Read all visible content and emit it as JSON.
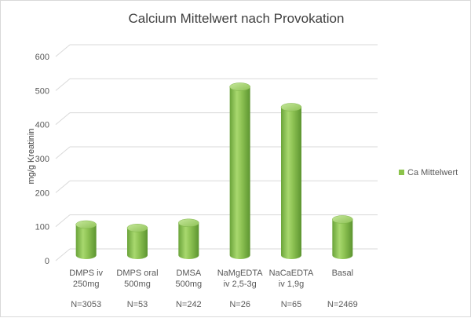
{
  "chart_data": {
    "type": "bar",
    "title": "Calcium Mittelwert nach Provokation",
    "ylabel": "mg/g Kreatinin",
    "xlabel": "",
    "ylim": [
      0,
      600
    ],
    "yticks": [
      0,
      100,
      200,
      300,
      400,
      500,
      600
    ],
    "grid": true,
    "legend_position": "right",
    "series": [
      {
        "name": "Ca Mittelwert",
        "color": "#8BC34A",
        "values": [
          90,
          80,
          95,
          495,
          435,
          105
        ]
      }
    ],
    "categories": [
      {
        "lines": [
          "DMPS iv",
          "250mg"
        ],
        "n": "N=3053"
      },
      {
        "lines": [
          "DMPS oral",
          "500mg"
        ],
        "n": "N=53"
      },
      {
        "lines": [
          "DMSA",
          "500mg"
        ],
        "n": "N=242"
      },
      {
        "lines": [
          "NaMgEDTA",
          "iv 2,5-3g"
        ],
        "n": "N=26"
      },
      {
        "lines": [
          "NaCaEDTA",
          "iv 1,9g"
        ],
        "n": "N=65"
      },
      {
        "lines": [
          "Basal"
        ],
        "n": "N=2469"
      }
    ]
  }
}
